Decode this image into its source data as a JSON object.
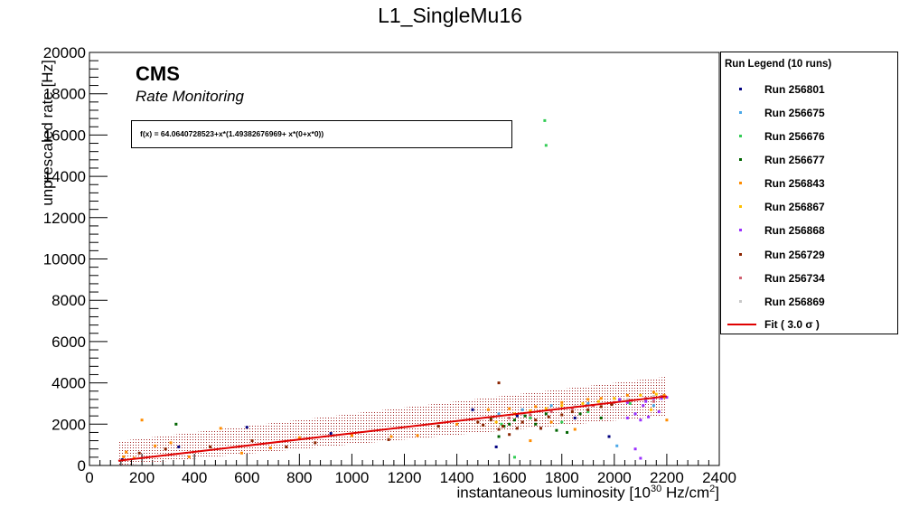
{
  "chart_data": {
    "type": "scatter",
    "title": "L1_SingleMu16",
    "cms_label": "CMS",
    "subtitle": "Rate Monitoring",
    "xlabel_prefix": "instantaneous luminosity [10",
    "xlabel_exp1": "30",
    "xlabel_mid": " Hz/cm",
    "xlabel_exp2": "2",
    "xlabel_suffix": "]",
    "ylabel": "unprescaled rate [Hz]",
    "xlim": [
      0,
      2400
    ],
    "ylim": [
      0,
      20000
    ],
    "xticks": [
      0,
      200,
      400,
      600,
      800,
      1000,
      1200,
      1400,
      1600,
      1800,
      2000,
      2200,
      2400
    ],
    "yticks": [
      0,
      2000,
      4000,
      6000,
      8000,
      10000,
      12000,
      14000,
      16000,
      18000,
      20000
    ],
    "fit_text": "f(x) = 64.0640728523+x*(1.49382676969+ x*(0+x*0))",
    "fit": {
      "intercept": 64.0640728523,
      "slope": 1.49382676969,
      "x_range": [
        110,
        2200
      ],
      "band_halfwidth": 950,
      "color": "#e00000",
      "band_color": "#a02020"
    },
    "legend": {
      "title": "Run Legend (10 runs)",
      "fit_label": "Fit ( 3.0  σ )"
    },
    "series": [
      {
        "name": "Run 256801",
        "color": "#000080",
        "points": [
          [
            125,
            280
          ],
          [
            340,
            900
          ],
          [
            600,
            1850
          ],
          [
            920,
            1550
          ],
          [
            1460,
            2700
          ],
          [
            1630,
            2400
          ],
          [
            1720,
            1800
          ],
          [
            1850,
            2300
          ],
          [
            1980,
            1400
          ],
          [
            1550,
            900
          ]
        ]
      },
      {
        "name": "Run 256675",
        "color": "#4aa8e8",
        "points": [
          [
            1560,
            2500
          ],
          [
            1650,
            2700
          ],
          [
            1760,
            2900
          ],
          [
            1900,
            3000
          ],
          [
            2020,
            3150
          ],
          [
            2120,
            3200
          ],
          [
            2180,
            3350
          ],
          [
            2010,
            950
          ],
          [
            2080,
            2500
          ],
          [
            2150,
            2900
          ]
        ]
      },
      {
        "name": "Run 256676",
        "color": "#33cc55",
        "points": [
          [
            1735,
            16700
          ],
          [
            1740,
            15500
          ],
          [
            1570,
            2000
          ],
          [
            1680,
            2300
          ],
          [
            1900,
            2600
          ],
          [
            2060,
            3000
          ],
          [
            1620,
            400
          ],
          [
            1800,
            2100
          ]
        ]
      },
      {
        "name": "Run 256677",
        "color": "#006400",
        "points": [
          [
            330,
            2000
          ],
          [
            1530,
            2300
          ],
          [
            1580,
            1900
          ],
          [
            1620,
            2200
          ],
          [
            1660,
            2400
          ],
          [
            1700,
            2000
          ],
          [
            1740,
            2500
          ],
          [
            1780,
            1700
          ],
          [
            1820,
            1600
          ],
          [
            1870,
            2500
          ],
          [
            1950,
            2300
          ],
          [
            1560,
            1400
          ],
          [
            1600,
            2000
          ]
        ]
      },
      {
        "name": "Run 256843",
        "color": "#ff8c00",
        "points": [
          [
            130,
            420
          ],
          [
            140,
            650
          ],
          [
            170,
            350
          ],
          [
            200,
            2200
          ],
          [
            250,
            950
          ],
          [
            310,
            1100
          ],
          [
            380,
            420
          ],
          [
            500,
            1800
          ],
          [
            580,
            600
          ],
          [
            690,
            850
          ],
          [
            800,
            1350
          ],
          [
            1000,
            1450
          ],
          [
            1150,
            1400
          ],
          [
            1250,
            1450
          ],
          [
            1400,
            2000
          ],
          [
            1520,
            2700
          ],
          [
            1600,
            2750
          ],
          [
            1700,
            2850
          ],
          [
            1800,
            3050
          ],
          [
            1900,
            3200
          ],
          [
            1950,
            3250
          ],
          [
            2050,
            3400
          ],
          [
            2150,
            3550
          ],
          [
            2190,
            3400
          ],
          [
            1850,
            1750
          ],
          [
            1760,
            2100
          ],
          [
            2200,
            2200
          ],
          [
            1680,
            1200
          ]
        ]
      },
      {
        "name": "Run 256867",
        "color": "#ffc000",
        "points": [
          [
            1550,
            2100
          ],
          [
            1620,
            2500
          ],
          [
            1680,
            2650
          ],
          [
            1740,
            2750
          ],
          [
            1800,
            2900
          ],
          [
            1880,
            3000
          ],
          [
            1940,
            3100
          ],
          [
            2000,
            3250
          ],
          [
            2100,
            3400
          ],
          [
            2160,
            3450
          ],
          [
            2190,
            3300
          ],
          [
            2140,
            2700
          ]
        ]
      },
      {
        "name": "Run 256868",
        "color": "#9b30ff",
        "points": [
          [
            2020,
            3200
          ],
          [
            2050,
            3050
          ],
          [
            2080,
            2500
          ],
          [
            2100,
            2200
          ],
          [
            2110,
            2900
          ],
          [
            2130,
            2350
          ],
          [
            2150,
            3250
          ],
          [
            2170,
            2600
          ],
          [
            2080,
            800
          ],
          [
            2100,
            350
          ],
          [
            2050,
            2300
          ],
          [
            2120,
            3100
          ],
          [
            2180,
            3250
          ],
          [
            2200,
            3300
          ]
        ]
      },
      {
        "name": "Run 256729",
        "color": "#8b2500",
        "points": [
          [
            190,
            600
          ],
          [
            290,
            800
          ],
          [
            460,
            900
          ],
          [
            620,
            1200
          ],
          [
            750,
            900
          ],
          [
            860,
            1100
          ],
          [
            1140,
            1250
          ],
          [
            1330,
            1900
          ],
          [
            1480,
            2100
          ],
          [
            1500,
            1950
          ],
          [
            1530,
            2200
          ],
          [
            1560,
            4000
          ],
          [
            1575,
            1900
          ],
          [
            1600,
            1500
          ],
          [
            1630,
            1800
          ],
          [
            1650,
            2100
          ],
          [
            1700,
            2200
          ],
          [
            1750,
            2350
          ],
          [
            1800,
            2450
          ],
          [
            1840,
            2600
          ],
          [
            1900,
            2700
          ],
          [
            1950,
            2850
          ],
          [
            1990,
            2950
          ],
          [
            1720,
            1800
          ],
          [
            1560,
            1750
          ]
        ]
      },
      {
        "name": "Run 256734",
        "color": "#d06070",
        "points": [
          [
            1600,
            2300
          ],
          [
            1680,
            2450
          ],
          [
            1760,
            2600
          ],
          [
            1840,
            2750
          ],
          [
            1920,
            2900
          ],
          [
            2000,
            3050
          ],
          [
            2060,
            3150
          ],
          [
            2120,
            3250
          ],
          [
            2180,
            3350
          ],
          [
            2150,
            3100
          ]
        ]
      },
      {
        "name": "Run 256869",
        "color": "#c8c8c8",
        "points": [
          [
            1650,
            2500
          ],
          [
            1750,
            2700
          ],
          [
            1850,
            2850
          ],
          [
            1950,
            3000
          ],
          [
            2050,
            3200
          ],
          [
            2150,
            3350
          ]
        ]
      }
    ]
  }
}
